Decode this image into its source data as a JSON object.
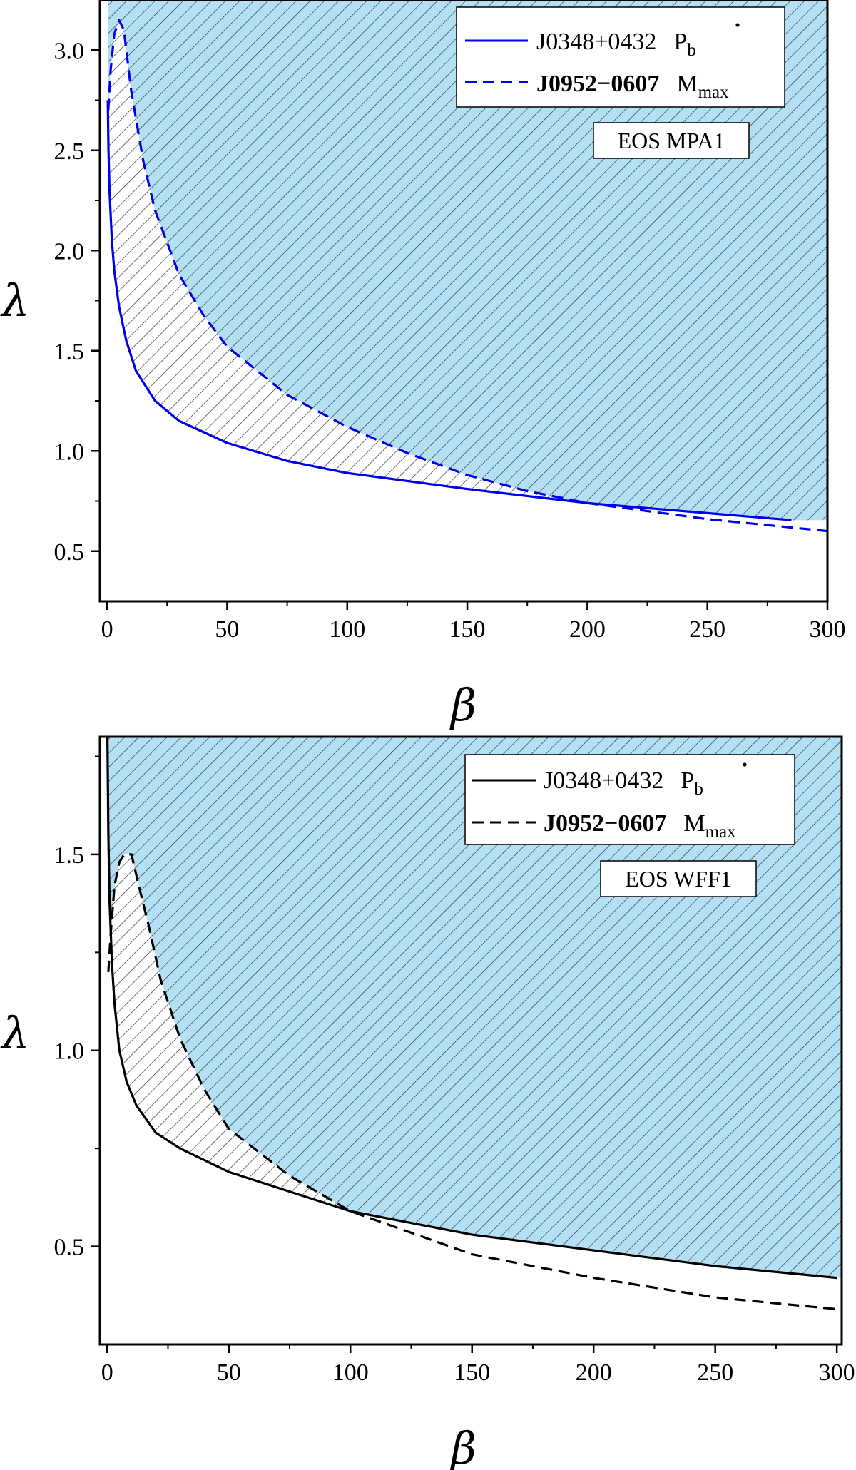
{
  "chart_data": [
    {
      "type": "line",
      "xlabel": "β",
      "ylabel": "λ",
      "xlim": [
        -3,
        300
      ],
      "ylim": [
        0.25,
        3.25
      ],
      "xticks": [
        0,
        50,
        100,
        150,
        200,
        250,
        300
      ],
      "yticks": [
        0.5,
        1.0,
        1.5,
        2.0,
        2.5,
        3.0
      ],
      "xtick_labels": [
        "0",
        "50",
        "100",
        "150",
        "200",
        "250",
        "300"
      ],
      "ytick_labels": [
        "0.5",
        "1.0",
        "1.5",
        "2.0",
        "2.5",
        "3.0"
      ],
      "line_color": "#0000ee",
      "fill_color": "#b3e0f5",
      "hatch_color": "#333333",
      "annotation": "EOS MPA1",
      "series": [
        {
          "name": "J0348+0432",
          "label_suffix_main": "P",
          "label_suffix_sub": "b",
          "label_suffix_dot": true,
          "style": "solid",
          "x": [
            0.3,
            0.6,
            1,
            2,
            3,
            5,
            8,
            12,
            20,
            30,
            50,
            75,
            100,
            150,
            200,
            250,
            285
          ],
          "y": [
            2.75,
            2.5,
            2.3,
            2.05,
            1.9,
            1.72,
            1.55,
            1.4,
            1.25,
            1.15,
            1.04,
            0.95,
            0.89,
            0.81,
            0.74,
            0.69,
            0.655
          ]
        },
        {
          "name": "J0952−0607",
          "label_suffix_main": "M",
          "label_suffix_sub": "max",
          "label_suffix_dot": false,
          "style": "dashed",
          "x": [
            0.5,
            1.5,
            3,
            5,
            7,
            10,
            15,
            20,
            30,
            40,
            50,
            75,
            100,
            125,
            150,
            175,
            200,
            250,
            300
          ],
          "y": [
            2.7,
            2.9,
            3.08,
            3.15,
            3.1,
            2.8,
            2.45,
            2.2,
            1.88,
            1.68,
            1.52,
            1.28,
            1.12,
            0.99,
            0.88,
            0.8,
            0.74,
            0.66,
            0.6
          ]
        }
      ]
    },
    {
      "type": "line",
      "xlabel": "β",
      "ylabel": "λ",
      "xlim": [
        -3,
        302
      ],
      "ylim": [
        0.25,
        1.8
      ],
      "xticks": [
        0,
        50,
        100,
        150,
        200,
        250,
        300
      ],
      "yticks": [
        0.5,
        1.0,
        1.5
      ],
      "xtick_labels": [
        "0",
        "50",
        "100",
        "150",
        "200",
        "250",
        "300"
      ],
      "ytick_labels": [
        "0.5",
        "1.0",
        "1.5"
      ],
      "line_color": "#000000",
      "fill_color": "#b3e0f5",
      "hatch_color": "#333333",
      "annotation": "EOS WFF1",
      "series": [
        {
          "name": "J0348+0432",
          "label_suffix_main": "P",
          "label_suffix_sub": "b",
          "label_suffix_dot": true,
          "style": "solid",
          "x": [
            0.1,
            0.5,
            1,
            2,
            3,
            5,
            8,
            12,
            20,
            30,
            50,
            75,
            100,
            150,
            200,
            250,
            300
          ],
          "y": [
            1.8,
            1.55,
            1.38,
            1.22,
            1.12,
            1.0,
            0.92,
            0.86,
            0.79,
            0.75,
            0.69,
            0.64,
            0.59,
            0.53,
            0.49,
            0.45,
            0.42
          ]
        },
        {
          "name": "J0952−0607",
          "label_suffix_main": "M",
          "label_suffix_sub": "max",
          "label_suffix_dot": false,
          "style": "dashed",
          "x": [
            0.5,
            1.5,
            3,
            5,
            7,
            10,
            13,
            17,
            22,
            30,
            40,
            50,
            75,
            100,
            150,
            200,
            250,
            300
          ],
          "y": [
            1.2,
            1.3,
            1.42,
            1.48,
            1.5,
            1.5,
            1.42,
            1.32,
            1.18,
            1.03,
            0.9,
            0.8,
            0.68,
            0.59,
            0.48,
            0.42,
            0.37,
            0.34
          ]
        }
      ]
    }
  ]
}
